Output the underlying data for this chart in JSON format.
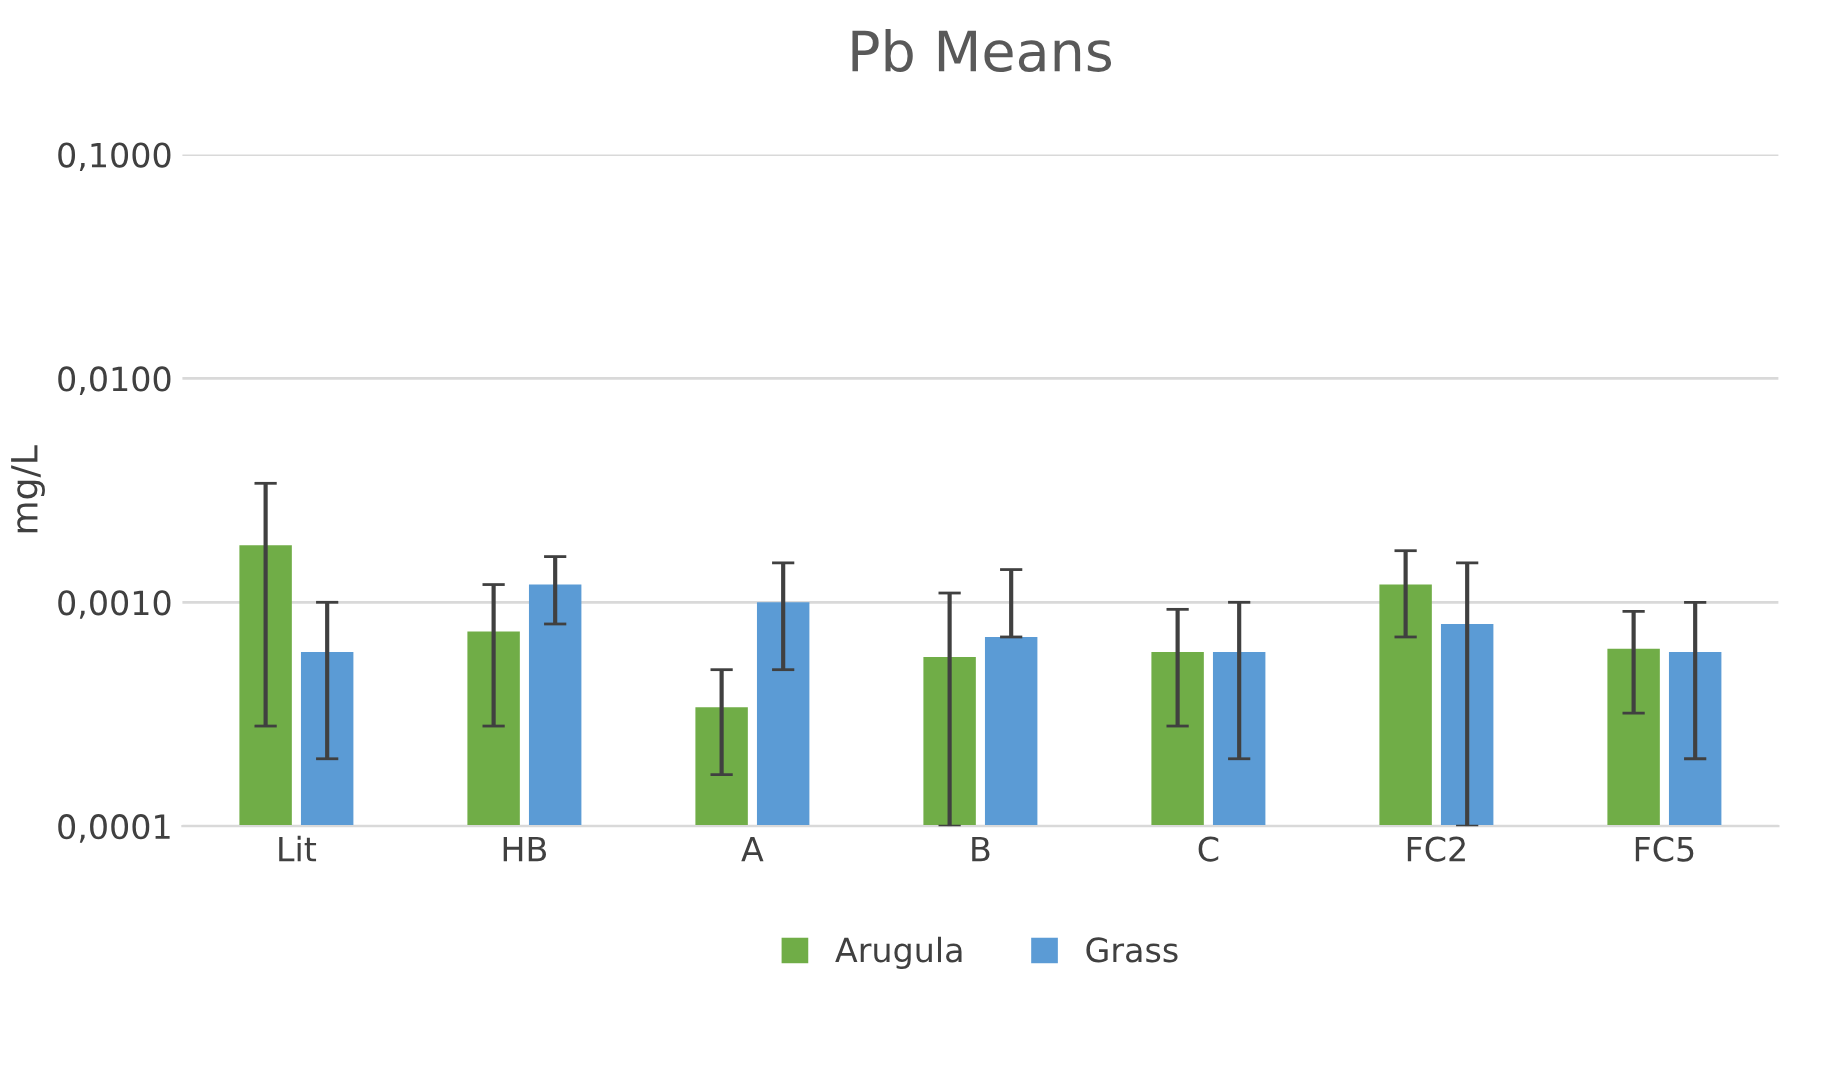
{
  "chart_data": {
    "type": "bar",
    "title": "Pb Means",
    "ylabel": "mg/L",
    "log": "y",
    "categories": [
      "Lit",
      "HB",
      "A",
      "B",
      "C",
      "FC2",
      "FC5"
    ],
    "series": [
      {
        "name": "Arugula",
        "color": "#70ad47",
        "values": [
          0.0018,
          0.00074,
          0.00034,
          0.00057,
          0.0006,
          0.0012,
          0.00062
        ],
        "errors": [
          [
            0.00028,
            0.0034
          ],
          [
            0.00028,
            0.0012
          ],
          [
            0.00017,
            0.0005
          ],
          [
            0.0001,
            0.0011
          ],
          [
            0.00028,
            0.00093
          ],
          [
            0.0007,
            0.0017
          ],
          [
            0.00032,
            0.00091
          ]
        ]
      },
      {
        "name": "Grass",
        "color": "#5b9bd5",
        "values": [
          0.0006,
          0.0012,
          0.001,
          0.0007,
          0.0006,
          0.0008,
          0.0006
        ],
        "errors": [
          [
            0.0002,
            0.001
          ],
          [
            0.0008,
            0.0016
          ],
          [
            0.0005,
            0.0015
          ],
          [
            0.0007,
            0.0014
          ],
          [
            0.0002,
            0.001
          ],
          [
            0.0001,
            0.0015
          ],
          [
            0.0002,
            0.001
          ]
        ]
      }
    ],
    "ylim": [
      0.0001,
      0.1
    ],
    "yticks": [
      {
        "value": 0.0001,
        "label": "0,0001"
      },
      {
        "value": 0.001,
        "label": "0,0010"
      },
      {
        "value": 0.01,
        "label": "0,0100"
      },
      {
        "value": 0.1,
        "label": "0,1000"
      }
    ],
    "grid": "y",
    "legend": "bottom"
  }
}
